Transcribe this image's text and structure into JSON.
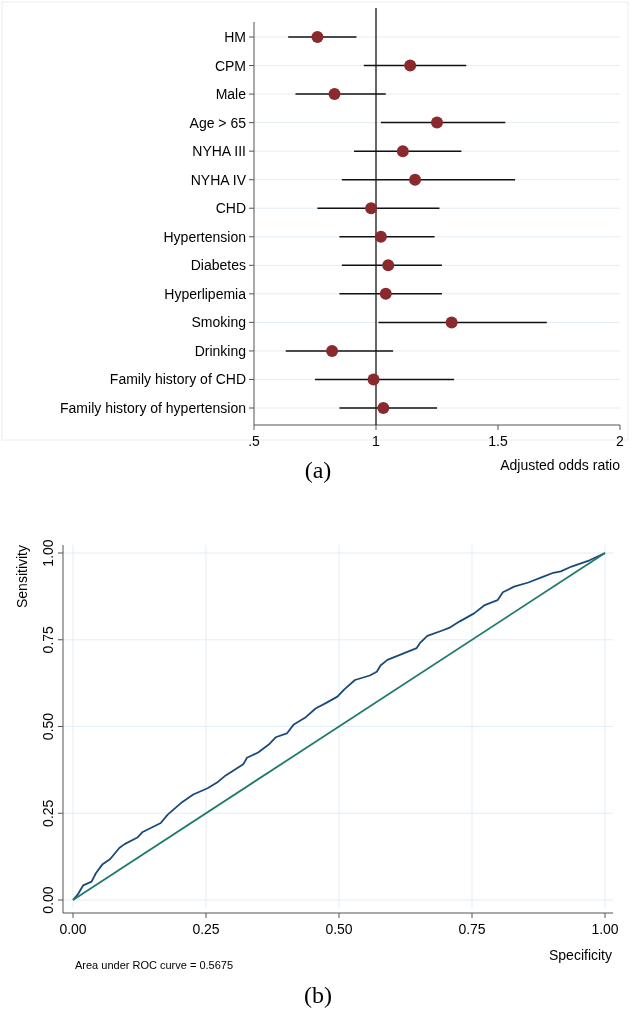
{
  "chart_data": [
    {
      "type": "scatter",
      "orientation": "horizontal",
      "marker": "circle",
      "color": "#8b2a2e",
      "grid": "y",
      "xlabel": "Adjusted odds ratio",
      "categories": [
        "HM",
        "CPM",
        "Male",
        "Age > 65",
        "NYHA III",
        "NYHA IV",
        "CHD",
        "Hypertension",
        "Diabetes",
        "Hyperlipemia",
        "Smoking",
        "Drinking",
        "Family history of CHD",
        "Family history of hypertension"
      ],
      "values": [
        0.76,
        1.14,
        0.83,
        1.25,
        1.11,
        1.16,
        0.98,
        1.02,
        1.05,
        1.04,
        1.31,
        0.82,
        0.99,
        1.03
      ],
      "errors": [
        [
          0.64,
          0.92
        ],
        [
          0.95,
          1.37
        ],
        [
          0.67,
          1.04
        ],
        [
          1.02,
          1.53
        ],
        [
          0.91,
          1.35
        ],
        [
          0.86,
          1.57
        ],
        [
          0.76,
          1.26
        ],
        [
          0.85,
          1.24
        ],
        [
          0.86,
          1.27
        ],
        [
          0.85,
          1.27
        ],
        [
          1.01,
          1.7
        ],
        [
          0.63,
          1.07
        ],
        [
          0.75,
          1.32
        ],
        [
          0.85,
          1.25
        ]
      ],
      "xlim": [
        0.5,
        2
      ],
      "xticks": [
        {
          "value": 0.5,
          "label": ".5"
        },
        1,
        1.5,
        2
      ],
      "ref_lines": [
        {
          "axis": "x",
          "value": 1,
          "color": "#000000"
        }
      ],
      "annotations": [
        "(a)"
      ]
    },
    {
      "type": "line",
      "marker": "none",
      "grid": true,
      "xlabel": "Specificity",
      "ylabel": "Sensitivity",
      "xlim": [
        0,
        1
      ],
      "ylim": [
        0,
        1
      ],
      "xticks": [
        {
          "value": 0,
          "label": "0.00"
        },
        {
          "value": 0.25,
          "label": "0.25"
        },
        {
          "value": 0.5,
          "label": "0.50"
        },
        {
          "value": 0.75,
          "label": "0.75"
        },
        {
          "value": 1,
          "label": "1.00"
        }
      ],
      "yticks": [
        {
          "value": 0,
          "label": "0.00"
        },
        {
          "value": 0.25,
          "label": "0.25"
        },
        {
          "value": 0.5,
          "label": "0.50"
        },
        {
          "value": 0.75,
          "label": "0.75"
        },
        {
          "value": 1,
          "label": "1.00"
        }
      ],
      "series": [
        {
          "color": "#1a4a7a",
          "x": [
            0,
            0.009,
            0.019,
            0.035,
            0.043,
            0.055,
            0.07,
            0.087,
            0.097,
            0.121,
            0.131,
            0.165,
            0.178,
            0.205,
            0.226,
            0.253,
            0.273,
            0.287,
            0.32,
            0.327,
            0.348,
            0.368,
            0.381,
            0.402,
            0.415,
            0.436,
            0.456,
            0.476,
            0.497,
            0.51,
            0.53,
            0.558,
            0.571,
            0.578,
            0.591,
            0.646,
            0.652,
            0.666,
            0.693,
            0.707,
            0.727,
            0.754,
            0.774,
            0.798,
            0.808,
            0.829,
            0.856,
            0.883,
            0.903,
            0.917,
            0.937,
            0.971,
            1
          ],
          "values": [
            0,
            0.016,
            0.042,
            0.053,
            0.077,
            0.102,
            0.118,
            0.15,
            0.161,
            0.18,
            0.196,
            0.222,
            0.246,
            0.282,
            0.304,
            0.322,
            0.341,
            0.359,
            0.391,
            0.41,
            0.425,
            0.448,
            0.469,
            0.48,
            0.506,
            0.525,
            0.552,
            0.568,
            0.586,
            0.607,
            0.634,
            0.647,
            0.658,
            0.676,
            0.692,
            0.726,
            0.74,
            0.761,
            0.776,
            0.784,
            0.803,
            0.826,
            0.85,
            0.864,
            0.887,
            0.903,
            0.915,
            0.931,
            0.943,
            0.947,
            0.961,
            0.979,
            1
          ]
        },
        {
          "color": "#1f7a6e",
          "x": [
            0,
            1
          ],
          "values": [
            0,
            1
          ]
        }
      ],
      "annotations": [
        "Area under ROC curve = 0.5675",
        "(b)"
      ]
    }
  ]
}
